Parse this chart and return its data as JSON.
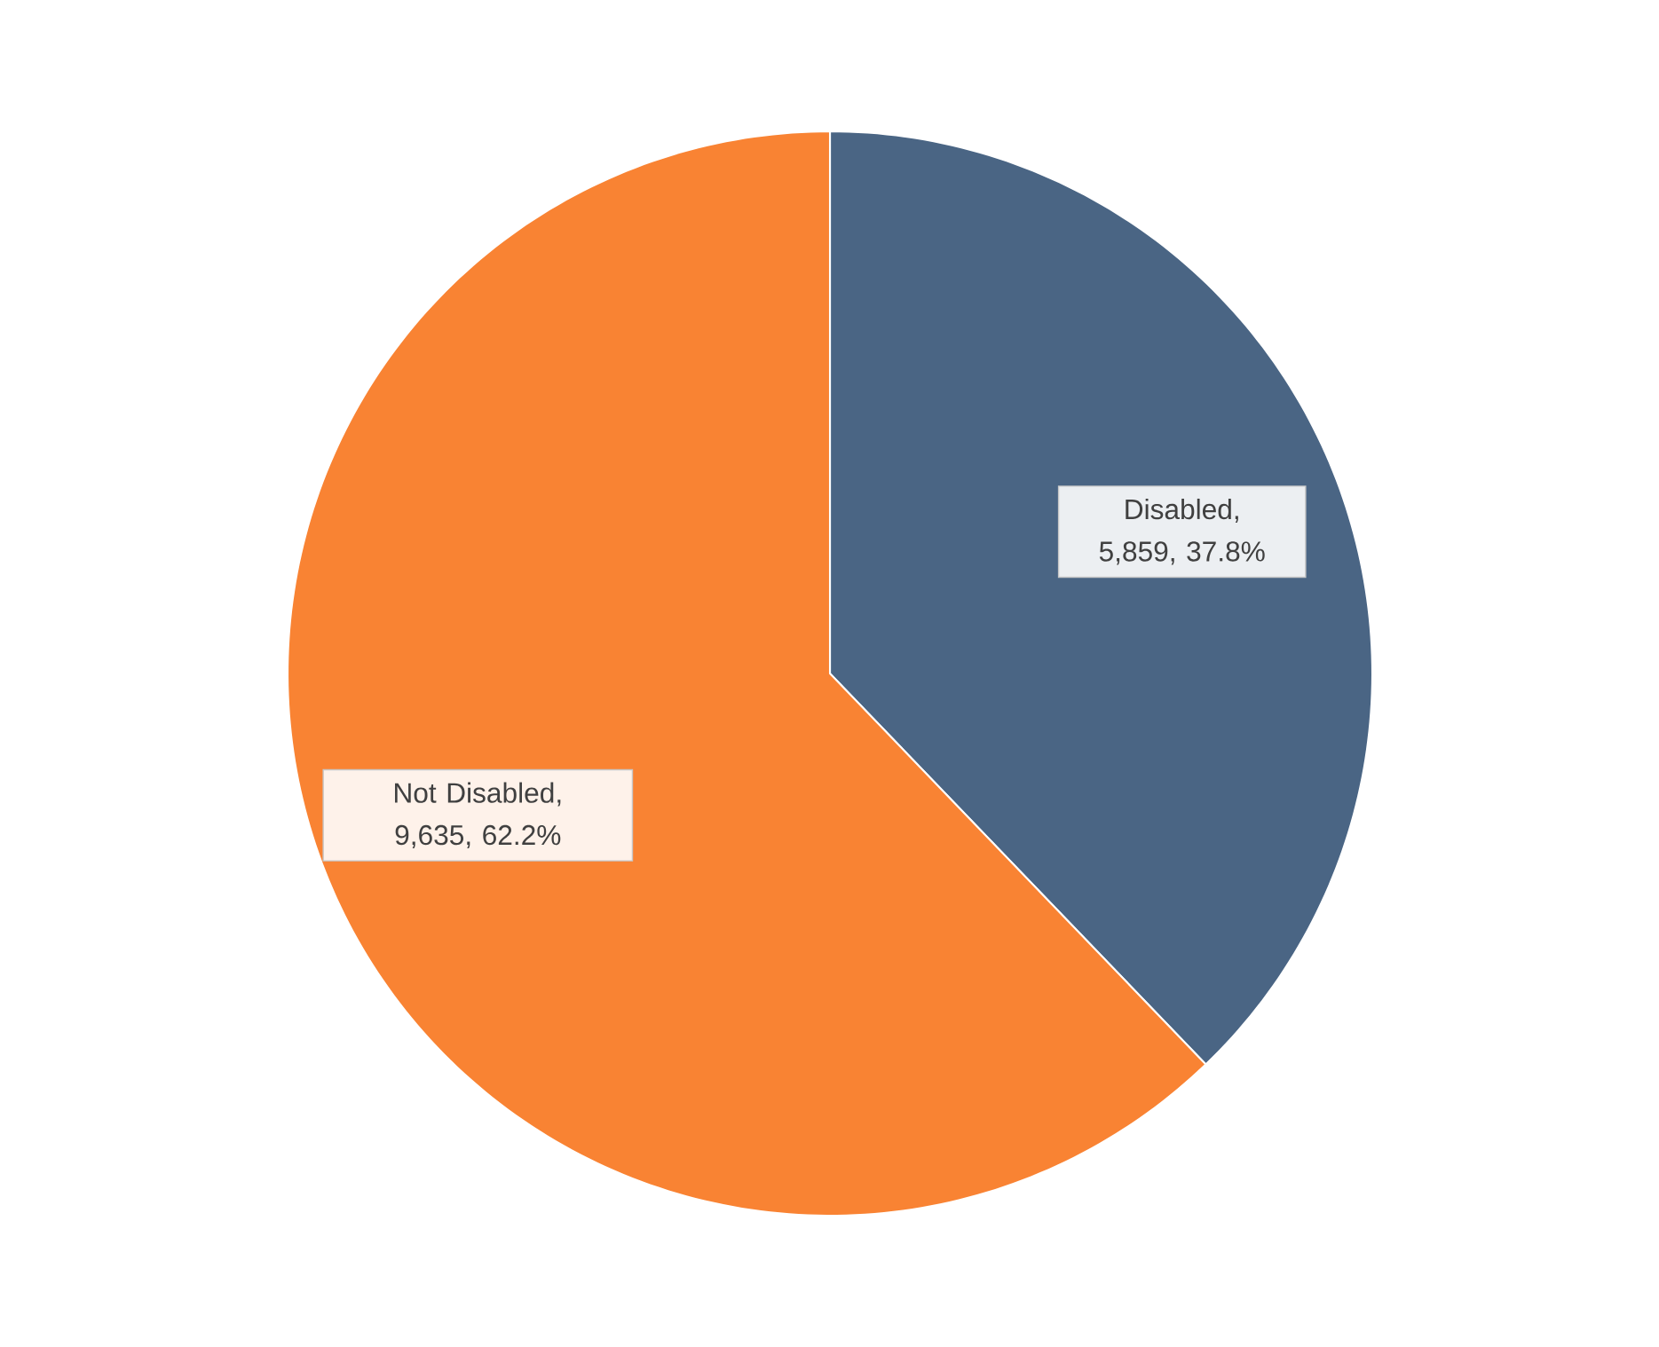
{
  "chart_data": {
    "type": "pie",
    "categories": [
      "Disabled",
      "Not Disabled"
    ],
    "values": [
      5859,
      9635
    ],
    "colors": [
      "#4a6584",
      "#f98333"
    ],
    "value_labels": [
      ", 5,859, 37.8%",
      ", 9,635, 62.2%"
    ]
  }
}
